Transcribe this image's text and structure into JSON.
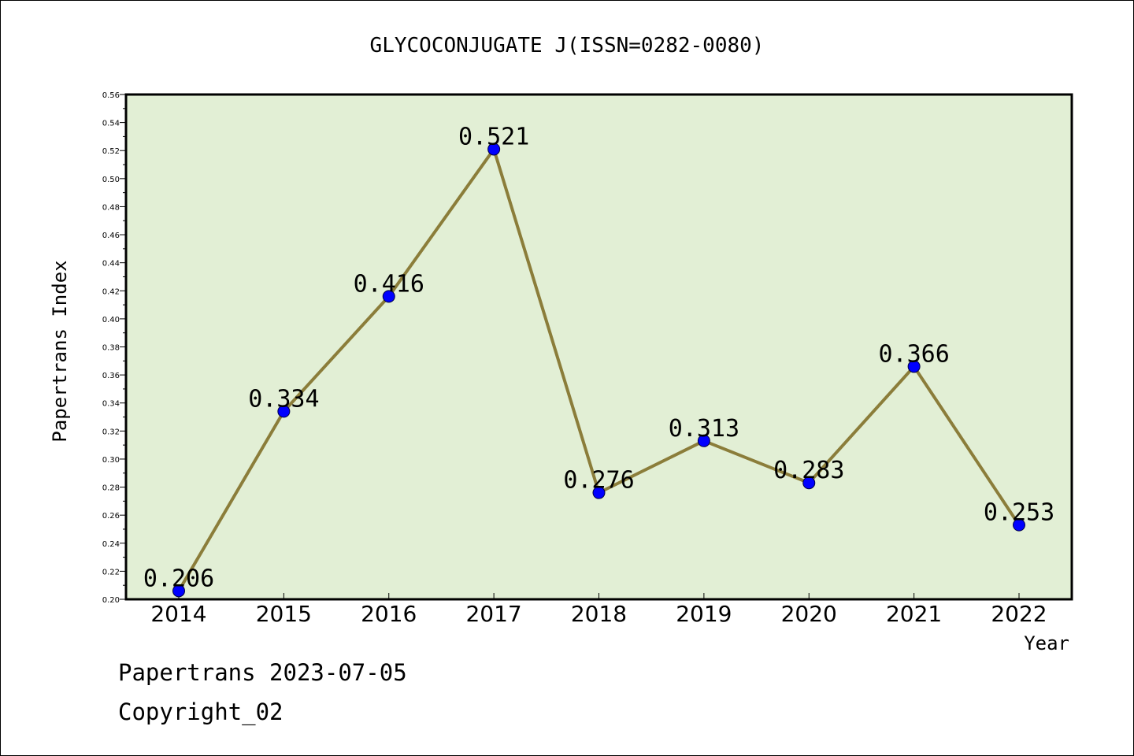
{
  "chart_data": {
    "type": "line",
    "title": "GLYCOCONJUGATE J(ISSN=0282-0080)",
    "xlabel": "Year",
    "ylabel": "Papertrans Index",
    "categories": [
      "2014",
      "2015",
      "2016",
      "2017",
      "2018",
      "2019",
      "2020",
      "2021",
      "2022"
    ],
    "series": [
      {
        "values": [
          0.206,
          0.334,
          0.416,
          0.521,
          0.276,
          0.313,
          0.283,
          0.366,
          0.253
        ]
      }
    ],
    "data_labels": [
      "0.206",
      "0.334",
      "0.416",
      "0.521",
      "0.276",
      "0.313",
      "0.283",
      "0.366",
      "0.253"
    ],
    "ylim": [
      0.2,
      0.56
    ],
    "yticks": [
      "0.20",
      "0.22",
      "0.24",
      "0.26",
      "0.28",
      "0.30",
      "0.32",
      "0.34",
      "0.36",
      "0.38",
      "0.40",
      "0.42",
      "0.44",
      "0.46",
      "0.48",
      "0.50",
      "0.52",
      "0.54",
      "0.56"
    ],
    "grid": false,
    "colors": {
      "plot_bg": "#e2efd5",
      "line": "#8b7d3a",
      "marker": "#0000ff"
    }
  },
  "footer": {
    "date_line": "Papertrans 2023-07-05",
    "copyright": "Copyright_02"
  }
}
